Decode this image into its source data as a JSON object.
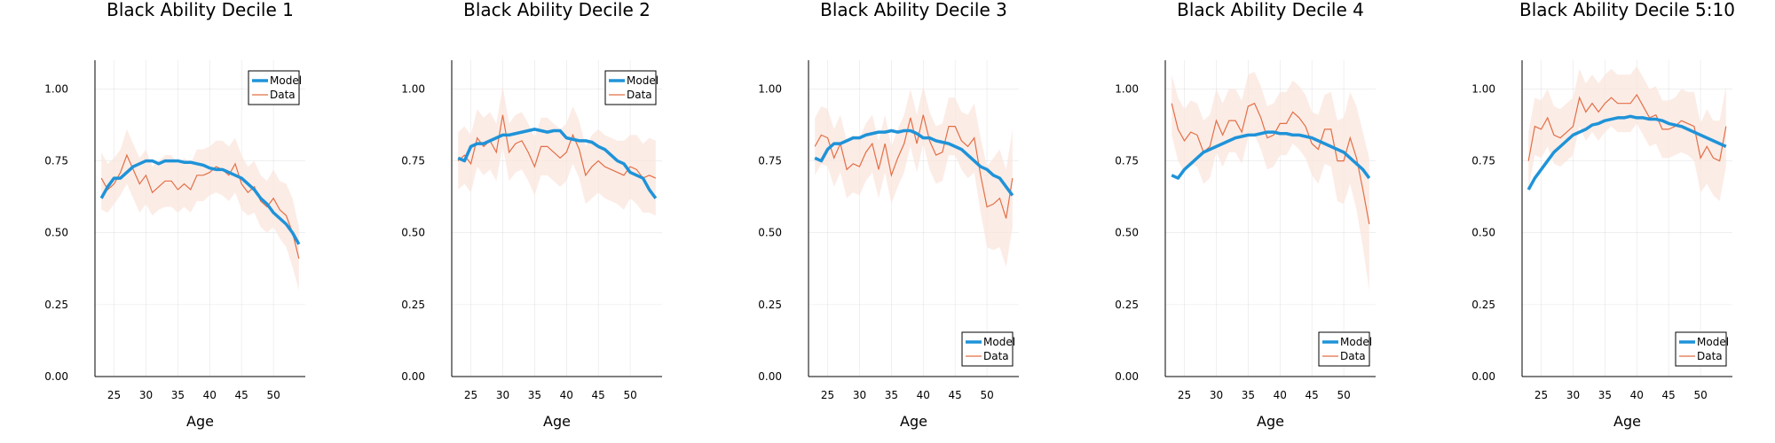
{
  "colors": {
    "model": "#1f93d8",
    "data": "#e26f46",
    "band": "#fbe6de"
  },
  "chart_data": [
    {
      "type": "line",
      "title": "Black Ability Decile 1",
      "xlabel": "Age",
      "ylabel": "",
      "ylim": [
        0,
        1.1
      ],
      "xlim": [
        22,
        55
      ],
      "xticks": [
        25,
        30,
        35,
        40,
        45,
        50
      ],
      "yticks": [
        0.0,
        0.25,
        0.5,
        0.75,
        1.0
      ],
      "ytick_labels": [
        "0.00",
        "0.25",
        "0.50",
        "0.75",
        "1.00"
      ],
      "grid": true,
      "legend": {
        "position": "top-right",
        "entries": [
          "Model",
          "Data"
        ]
      },
      "x": [
        23,
        24,
        25,
        26,
        27,
        28,
        29,
        30,
        31,
        32,
        33,
        34,
        35,
        36,
        37,
        38,
        39,
        40,
        41,
        42,
        43,
        44,
        45,
        46,
        47,
        48,
        49,
        50,
        51,
        52,
        53,
        54
      ],
      "series": [
        {
          "name": "Model",
          "values": [
            0.62,
            0.66,
            0.69,
            0.69,
            0.71,
            0.73,
            0.74,
            0.75,
            0.75,
            0.74,
            0.75,
            0.75,
            0.75,
            0.745,
            0.745,
            0.74,
            0.735,
            0.725,
            0.72,
            0.72,
            0.71,
            0.7,
            0.69,
            0.67,
            0.65,
            0.62,
            0.6,
            0.57,
            0.55,
            0.53,
            0.5,
            0.46
          ]
        },
        {
          "name": "Data",
          "values": [
            0.69,
            0.65,
            0.67,
            0.71,
            0.77,
            0.72,
            0.67,
            0.7,
            0.64,
            0.66,
            0.68,
            0.68,
            0.65,
            0.67,
            0.65,
            0.7,
            0.7,
            0.71,
            0.73,
            0.72,
            0.7,
            0.74,
            0.67,
            0.64,
            0.66,
            0.61,
            0.59,
            0.62,
            0.58,
            0.56,
            0.5,
            0.41
          ]
        }
      ],
      "band_lower": [
        0.58,
        0.57,
        0.6,
        0.63,
        0.67,
        0.62,
        0.57,
        0.6,
        0.56,
        0.58,
        0.59,
        0.59,
        0.57,
        0.59,
        0.57,
        0.61,
        0.61,
        0.63,
        0.64,
        0.63,
        0.61,
        0.64,
        0.58,
        0.56,
        0.57,
        0.52,
        0.5,
        0.52,
        0.48,
        0.45,
        0.38,
        0.3
      ],
      "band_upper": [
        0.78,
        0.74,
        0.76,
        0.79,
        0.86,
        0.81,
        0.76,
        0.79,
        0.73,
        0.75,
        0.77,
        0.77,
        0.74,
        0.76,
        0.74,
        0.79,
        0.79,
        0.8,
        0.82,
        0.82,
        0.8,
        0.83,
        0.77,
        0.73,
        0.75,
        0.7,
        0.68,
        0.72,
        0.68,
        0.67,
        0.62,
        0.52
      ]
    },
    {
      "type": "line",
      "title": "Black Ability Decile 2",
      "xlabel": "Age",
      "ylabel": "",
      "ylim": [
        0,
        1.1
      ],
      "xlim": [
        22,
        55
      ],
      "xticks": [
        25,
        30,
        35,
        40,
        45,
        50
      ],
      "yticks": [
        0.0,
        0.25,
        0.5,
        0.75,
        1.0
      ],
      "ytick_labels": [
        "0.00",
        "0.25",
        "0.50",
        "0.75",
        "1.00"
      ],
      "grid": true,
      "legend": {
        "position": "top-right",
        "entries": [
          "Model",
          "Data"
        ]
      },
      "x": [
        23,
        24,
        25,
        26,
        27,
        28,
        29,
        30,
        31,
        32,
        33,
        34,
        35,
        36,
        37,
        38,
        39,
        40,
        41,
        42,
        43,
        44,
        45,
        46,
        47,
        48,
        49,
        50,
        51,
        52,
        53,
        54
      ],
      "series": [
        {
          "name": "Model",
          "values": [
            0.76,
            0.75,
            0.8,
            0.81,
            0.81,
            0.82,
            0.83,
            0.84,
            0.84,
            0.845,
            0.85,
            0.855,
            0.86,
            0.855,
            0.85,
            0.855,
            0.855,
            0.83,
            0.825,
            0.82,
            0.82,
            0.815,
            0.8,
            0.79,
            0.77,
            0.75,
            0.74,
            0.71,
            0.7,
            0.69,
            0.65,
            0.62
          ]
        },
        {
          "name": "Data",
          "values": [
            0.75,
            0.77,
            0.74,
            0.83,
            0.8,
            0.82,
            0.78,
            0.91,
            0.78,
            0.81,
            0.82,
            0.78,
            0.73,
            0.8,
            0.8,
            0.78,
            0.76,
            0.78,
            0.84,
            0.79,
            0.7,
            0.73,
            0.75,
            0.73,
            0.72,
            0.71,
            0.7,
            0.73,
            0.72,
            0.69,
            0.7,
            0.69
          ]
        }
      ],
      "band_lower": [
        0.65,
        0.67,
        0.64,
        0.73,
        0.7,
        0.72,
        0.68,
        0.8,
        0.68,
        0.71,
        0.72,
        0.68,
        0.63,
        0.7,
        0.7,
        0.68,
        0.66,
        0.68,
        0.74,
        0.69,
        0.6,
        0.62,
        0.64,
        0.62,
        0.61,
        0.6,
        0.58,
        0.62,
        0.6,
        0.57,
        0.57,
        0.56
      ],
      "band_upper": [
        0.85,
        0.87,
        0.84,
        0.93,
        0.9,
        0.92,
        0.88,
        1.01,
        0.88,
        0.91,
        0.92,
        0.88,
        0.83,
        0.9,
        0.9,
        0.88,
        0.86,
        0.88,
        0.94,
        0.89,
        0.8,
        0.84,
        0.86,
        0.84,
        0.83,
        0.82,
        0.82,
        0.84,
        0.84,
        0.81,
        0.83,
        0.82
      ]
    },
    {
      "type": "line",
      "title": "Black Ability Decile 3",
      "xlabel": "Age",
      "ylabel": "",
      "ylim": [
        0,
        1.1
      ],
      "xlim": [
        22,
        55
      ],
      "xticks": [
        25,
        30,
        35,
        40,
        45,
        50
      ],
      "yticks": [
        0.0,
        0.25,
        0.5,
        0.75,
        1.0
      ],
      "ytick_labels": [
        "0.00",
        "0.25",
        "0.50",
        "0.75",
        "1.00"
      ],
      "grid": true,
      "legend": {
        "position": "bottom-right",
        "entries": [
          "Model",
          "Data"
        ]
      },
      "x": [
        23,
        24,
        25,
        26,
        27,
        28,
        29,
        30,
        31,
        32,
        33,
        34,
        35,
        36,
        37,
        38,
        39,
        40,
        41,
        42,
        43,
        44,
        45,
        46,
        47,
        48,
        49,
        50,
        51,
        52,
        53,
        54
      ],
      "series": [
        {
          "name": "Model",
          "values": [
            0.76,
            0.75,
            0.79,
            0.81,
            0.81,
            0.82,
            0.83,
            0.83,
            0.84,
            0.845,
            0.85,
            0.85,
            0.855,
            0.85,
            0.855,
            0.855,
            0.845,
            0.83,
            0.83,
            0.82,
            0.815,
            0.81,
            0.8,
            0.79,
            0.77,
            0.75,
            0.73,
            0.72,
            0.7,
            0.69,
            0.66,
            0.63
          ]
        },
        {
          "name": "Data",
          "values": [
            0.8,
            0.84,
            0.83,
            0.76,
            0.81,
            0.72,
            0.74,
            0.73,
            0.78,
            0.81,
            0.72,
            0.81,
            0.7,
            0.76,
            0.81,
            0.9,
            0.81,
            0.91,
            0.82,
            0.77,
            0.78,
            0.87,
            0.87,
            0.82,
            0.8,
            0.83,
            0.7,
            0.59,
            0.6,
            0.62,
            0.55,
            0.69
          ]
        }
      ],
      "band_lower": [
        0.7,
        0.74,
        0.73,
        0.66,
        0.71,
        0.62,
        0.64,
        0.63,
        0.68,
        0.71,
        0.62,
        0.71,
        0.6,
        0.66,
        0.71,
        0.8,
        0.71,
        0.81,
        0.72,
        0.67,
        0.68,
        0.77,
        0.77,
        0.72,
        0.69,
        0.71,
        0.57,
        0.45,
        0.44,
        0.45,
        0.38,
        0.52
      ],
      "band_upper": [
        0.9,
        0.94,
        0.93,
        0.86,
        0.91,
        0.82,
        0.84,
        0.83,
        0.88,
        0.91,
        0.82,
        0.91,
        0.8,
        0.86,
        0.91,
        1.0,
        0.91,
        1.01,
        0.92,
        0.87,
        0.88,
        0.97,
        0.97,
        0.92,
        0.91,
        0.95,
        0.83,
        0.73,
        0.76,
        0.79,
        0.72,
        0.86
      ]
    },
    {
      "type": "line",
      "title": "Black Ability Decile 4",
      "xlabel": "Age",
      "ylabel": "",
      "ylim": [
        0,
        1.1
      ],
      "xlim": [
        22,
        55
      ],
      "xticks": [
        25,
        30,
        35,
        40,
        45,
        50
      ],
      "yticks": [
        0.0,
        0.25,
        0.5,
        0.75,
        1.0
      ],
      "ytick_labels": [
        "0.00",
        "0.25",
        "0.50",
        "0.75",
        "1.00"
      ],
      "grid": true,
      "legend": {
        "position": "bottom-right",
        "entries": [
          "Model",
          "Data"
        ]
      },
      "x": [
        23,
        24,
        25,
        26,
        27,
        28,
        29,
        30,
        31,
        32,
        33,
        34,
        35,
        36,
        37,
        38,
        39,
        40,
        41,
        42,
        43,
        44,
        45,
        46,
        47,
        48,
        49,
        50,
        51,
        52,
        53,
        54
      ],
      "series": [
        {
          "name": "Model",
          "values": [
            0.7,
            0.69,
            0.72,
            0.74,
            0.76,
            0.78,
            0.79,
            0.8,
            0.81,
            0.82,
            0.83,
            0.835,
            0.84,
            0.84,
            0.845,
            0.85,
            0.85,
            0.845,
            0.845,
            0.84,
            0.84,
            0.835,
            0.83,
            0.82,
            0.81,
            0.8,
            0.79,
            0.78,
            0.76,
            0.74,
            0.72,
            0.69
          ]
        },
        {
          "name": "Data",
          "values": [
            0.95,
            0.86,
            0.82,
            0.85,
            0.84,
            0.78,
            0.8,
            0.89,
            0.84,
            0.89,
            0.89,
            0.85,
            0.94,
            0.95,
            0.9,
            0.83,
            0.84,
            0.88,
            0.88,
            0.92,
            0.9,
            0.87,
            0.81,
            0.79,
            0.86,
            0.86,
            0.75,
            0.75,
            0.83,
            0.76,
            0.65,
            0.53
          ]
        }
      ],
      "band_lower": [
        0.84,
        0.75,
        0.71,
        0.74,
        0.73,
        0.67,
        0.69,
        0.78,
        0.73,
        0.78,
        0.78,
        0.74,
        0.83,
        0.84,
        0.79,
        0.72,
        0.73,
        0.77,
        0.77,
        0.81,
        0.79,
        0.76,
        0.7,
        0.67,
        0.74,
        0.73,
        0.61,
        0.6,
        0.67,
        0.58,
        0.45,
        0.3
      ],
      "band_upper": [
        1.05,
        0.97,
        0.93,
        0.96,
        0.95,
        0.89,
        0.91,
        1.0,
        0.95,
        1.0,
        1.0,
        0.96,
        1.05,
        1.06,
        1.01,
        0.94,
        0.95,
        0.99,
        0.99,
        1.03,
        1.01,
        0.98,
        0.92,
        0.91,
        0.98,
        0.99,
        0.89,
        0.9,
        0.99,
        0.94,
        0.85,
        0.76
      ]
    },
    {
      "type": "line",
      "title": "Black Ability Decile 5:10",
      "xlabel": "Age",
      "ylabel": "",
      "ylim": [
        0,
        1.1
      ],
      "xlim": [
        22,
        55
      ],
      "xticks": [
        25,
        30,
        35,
        40,
        45,
        50
      ],
      "yticks": [
        0.0,
        0.25,
        0.5,
        0.75,
        1.0
      ],
      "ytick_labels": [
        "0.00",
        "0.25",
        "0.50",
        "0.75",
        "1.00"
      ],
      "grid": true,
      "legend": {
        "position": "bottom-right",
        "entries": [
          "Model",
          "Data"
        ]
      },
      "x": [
        23,
        24,
        25,
        26,
        27,
        28,
        29,
        30,
        31,
        32,
        33,
        34,
        35,
        36,
        37,
        38,
        39,
        40,
        41,
        42,
        43,
        44,
        45,
        46,
        47,
        48,
        49,
        50,
        51,
        52,
        53,
        54
      ],
      "series": [
        {
          "name": "Model",
          "values": [
            0.65,
            0.69,
            0.72,
            0.75,
            0.78,
            0.8,
            0.82,
            0.84,
            0.85,
            0.86,
            0.875,
            0.88,
            0.89,
            0.895,
            0.9,
            0.9,
            0.905,
            0.9,
            0.9,
            0.895,
            0.895,
            0.89,
            0.88,
            0.875,
            0.87,
            0.86,
            0.85,
            0.84,
            0.83,
            0.82,
            0.81,
            0.8
          ]
        },
        {
          "name": "Data",
          "values": [
            0.75,
            0.87,
            0.86,
            0.9,
            0.84,
            0.83,
            0.85,
            0.87,
            0.97,
            0.92,
            0.95,
            0.92,
            0.95,
            0.97,
            0.95,
            0.95,
            0.95,
            0.98,
            0.94,
            0.9,
            0.91,
            0.86,
            0.86,
            0.87,
            0.89,
            0.88,
            0.87,
            0.76,
            0.8,
            0.76,
            0.75,
            0.87
          ]
        }
      ],
      "band_lower": [
        0.65,
        0.77,
        0.76,
        0.8,
        0.74,
        0.73,
        0.75,
        0.77,
        0.87,
        0.82,
        0.85,
        0.82,
        0.85,
        0.87,
        0.85,
        0.85,
        0.85,
        0.88,
        0.84,
        0.8,
        0.81,
        0.76,
        0.76,
        0.77,
        0.78,
        0.77,
        0.75,
        0.64,
        0.67,
        0.63,
        0.61,
        0.73
      ],
      "band_upper": [
        0.85,
        0.97,
        0.96,
        1.0,
        0.94,
        0.93,
        0.95,
        0.97,
        1.07,
        1.02,
        1.05,
        1.02,
        1.05,
        1.07,
        1.05,
        1.05,
        1.05,
        1.08,
        1.04,
        1.0,
        1.01,
        0.96,
        0.96,
        0.97,
        1.0,
        0.99,
        0.99,
        0.88,
        0.93,
        0.89,
        0.89,
        1.01
      ]
    }
  ]
}
